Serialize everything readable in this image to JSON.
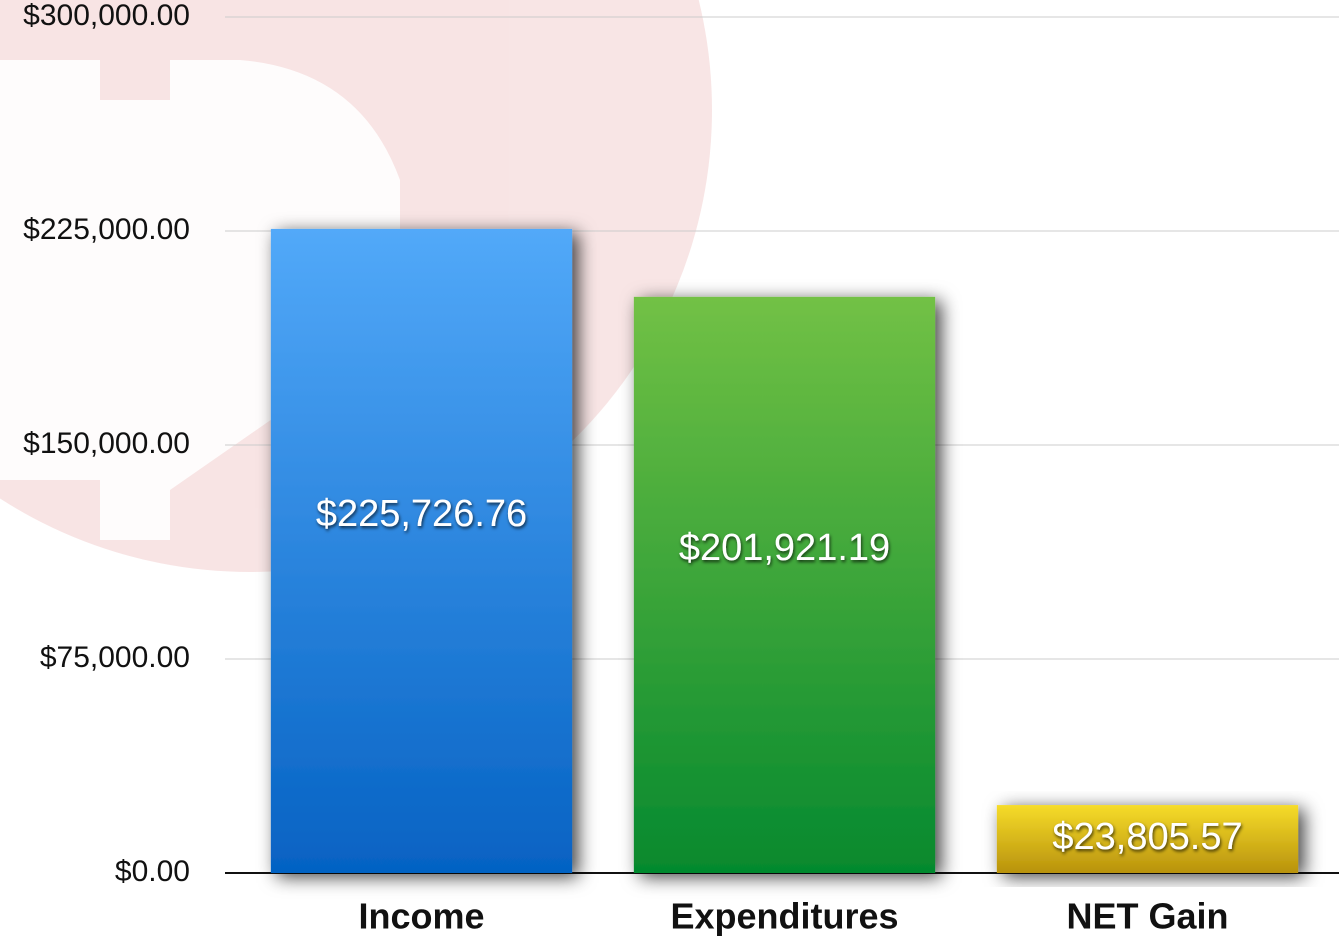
{
  "chart_data": {
    "type": "bar",
    "categories": [
      "Income",
      "Expenditures",
      "NET Gain"
    ],
    "values": [
      225726.76,
      201921.19,
      23805.57
    ],
    "value_labels": [
      "$225,726.76",
      "$201,921.19",
      "$23,805.57"
    ],
    "colors": [
      [
        "#52a9f9",
        "#0562c3"
      ],
      [
        "#72c145",
        "#05892e"
      ],
      [
        "#f6dc2a",
        "#b8920c"
      ]
    ],
    "ylim": [
      0,
      300000
    ],
    "yticks": [
      {
        "value": 0,
        "label": "$0.00"
      },
      {
        "value": 75000,
        "label": "$75,000.00"
      },
      {
        "value": 150000,
        "label": "$150,000.00"
      },
      {
        "value": 225000,
        "label": "$225,000.00"
      },
      {
        "value": 300000,
        "label": "$300,000.00"
      }
    ],
    "grid": true
  }
}
